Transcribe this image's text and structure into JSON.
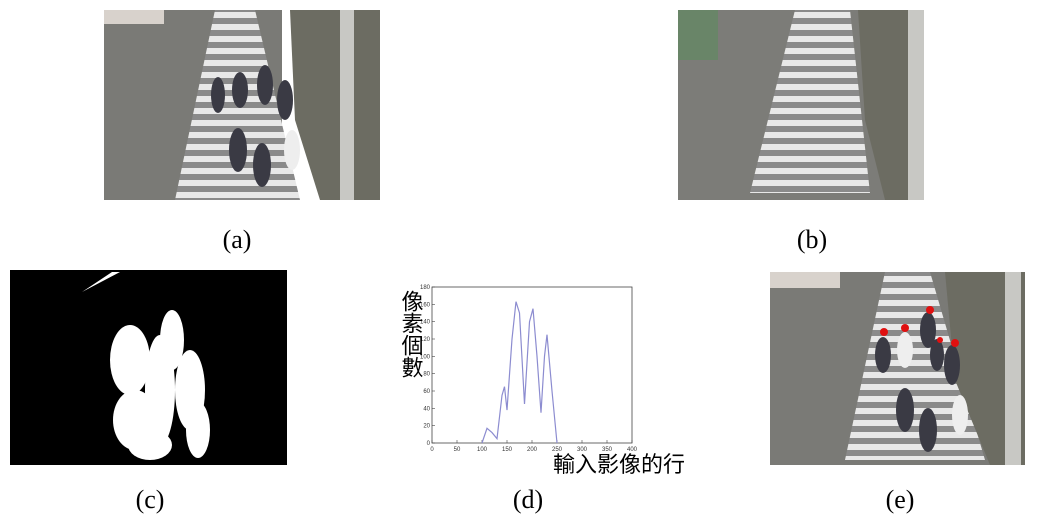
{
  "panels": [
    "(a)",
    "(b)",
    "(c)",
    "(d)",
    "(e)"
  ],
  "chart_data": {
    "type": "line",
    "xlabel": "輸入影像的行",
    "ylabel": "像素個數",
    "x": [
      100,
      110,
      120,
      130,
      140,
      145,
      150,
      160,
      168,
      175,
      185,
      195,
      202,
      210,
      218,
      225,
      230,
      240,
      250
    ],
    "series": [
      {
        "color": "#8c8cd0",
        "values": [
          0,
          17,
          12,
          5,
          55,
          65,
          38,
          120,
          163,
          150,
          45,
          140,
          155,
          100,
          35,
          100,
          125,
          60,
          0
        ]
      }
    ],
    "xlim": [
      0,
      400
    ],
    "xticks": [
      0,
      50,
      100,
      150,
      200,
      250,
      300,
      350,
      400
    ],
    "ylim": [
      0,
      180
    ],
    "yticks": [
      0,
      20,
      40,
      60,
      80,
      100,
      120,
      140,
      160,
      180
    ]
  }
}
